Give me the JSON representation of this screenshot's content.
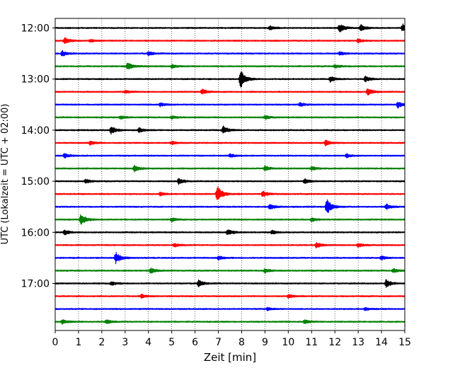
{
  "chart_data": {
    "type": "line",
    "title": "",
    "xlabel": "Zeit  [min]",
    "ylabel": "UTC (Lokalzeit = UTC + 02:00)",
    "xlim": [
      0,
      15
    ],
    "x_ticks": [
      "0",
      "1",
      "2",
      "3",
      "4",
      "5",
      "6",
      "7",
      "8",
      "9",
      "10",
      "11",
      "12",
      "13",
      "14",
      "15"
    ],
    "y_tick_labels": [
      "12:00",
      "13:00",
      "14:00",
      "15:00",
      "16:00",
      "17:00"
    ],
    "grid": "vertical dotted lines at each minute",
    "trace_colors": [
      "#000000",
      "#ff0000",
      "#0000ff",
      "#008000"
    ],
    "series": [
      {
        "start": "12:00",
        "events": [
          [
            12.2,
            0.45
          ],
          [
            13.1,
            0.35
          ],
          [
            14.9,
            0.4
          ],
          [
            9.2,
            0.2
          ]
        ]
      },
      {
        "start": "12:15",
        "events": [
          [
            0.4,
            0.35
          ],
          [
            13.0,
            0.2
          ],
          [
            1.5,
            0.15
          ]
        ]
      },
      {
        "start": "12:30",
        "events": [
          [
            0.3,
            0.3
          ],
          [
            4.0,
            0.2
          ],
          [
            12.2,
            0.2
          ]
        ]
      },
      {
        "start": "12:45",
        "events": [
          [
            3.1,
            0.4
          ],
          [
            5.0,
            0.2
          ],
          [
            12.0,
            0.2
          ]
        ]
      },
      {
        "start": "13:00",
        "events": [
          [
            7.95,
            1.0
          ],
          [
            11.8,
            0.3
          ],
          [
            13.3,
            0.3
          ]
        ]
      },
      {
        "start": "13:15",
        "events": [
          [
            6.3,
            0.3
          ],
          [
            13.4,
            0.35
          ],
          [
            3.0,
            0.15
          ]
        ]
      },
      {
        "start": "13:30",
        "events": [
          [
            14.7,
            0.35
          ],
          [
            4.5,
            0.2
          ],
          [
            10.5,
            0.2
          ]
        ]
      },
      {
        "start": "13:45",
        "events": [
          [
            2.8,
            0.2
          ],
          [
            9.0,
            0.2
          ],
          [
            5.0,
            0.15
          ]
        ]
      },
      {
        "start": "14:00",
        "events": [
          [
            2.4,
            0.4
          ],
          [
            7.2,
            0.45
          ],
          [
            3.6,
            0.25
          ]
        ]
      },
      {
        "start": "14:15",
        "events": [
          [
            11.6,
            0.3
          ],
          [
            1.5,
            0.2
          ],
          [
            5.0,
            0.15
          ]
        ]
      },
      {
        "start": "14:30",
        "events": [
          [
            0.4,
            0.25
          ],
          [
            12.5,
            0.2
          ],
          [
            7.5,
            0.2
          ]
        ]
      },
      {
        "start": "14:45",
        "events": [
          [
            3.4,
            0.35
          ],
          [
            9.0,
            0.25
          ],
          [
            11.0,
            0.2
          ]
        ]
      },
      {
        "start": "15:00",
        "events": [
          [
            5.3,
            0.3
          ],
          [
            10.7,
            0.25
          ],
          [
            1.3,
            0.2
          ]
        ]
      },
      {
        "start": "15:15",
        "events": [
          [
            6.95,
            0.9
          ],
          [
            8.9,
            0.3
          ],
          [
            4.5,
            0.2
          ]
        ]
      },
      {
        "start": "15:30",
        "events": [
          [
            11.65,
            0.85
          ],
          [
            14.2,
            0.3
          ],
          [
            9.2,
            0.3
          ]
        ]
      },
      {
        "start": "15:45",
        "events": [
          [
            1.1,
            0.65
          ],
          [
            5.0,
            0.2
          ],
          [
            11.0,
            0.2
          ]
        ]
      },
      {
        "start": "16:00",
        "events": [
          [
            7.4,
            0.3
          ],
          [
            0.4,
            0.25
          ],
          [
            9.3,
            0.2
          ]
        ]
      },
      {
        "start": "16:15",
        "events": [
          [
            11.2,
            0.3
          ],
          [
            5.1,
            0.2
          ],
          [
            13.0,
            0.2
          ]
        ]
      },
      {
        "start": "16:30",
        "events": [
          [
            2.6,
            0.6
          ],
          [
            14.0,
            0.2
          ],
          [
            7.0,
            0.2
          ]
        ]
      },
      {
        "start": "16:45",
        "events": [
          [
            4.1,
            0.3
          ],
          [
            14.5,
            0.25
          ],
          [
            9.0,
            0.2
          ]
        ]
      },
      {
        "start": "17:00",
        "events": [
          [
            6.15,
            0.35
          ],
          [
            14.2,
            0.45
          ],
          [
            2.4,
            0.2
          ]
        ]
      },
      {
        "start": "17:15",
        "events": [
          [
            3.7,
            0.2
          ],
          [
            10.0,
            0.2
          ]
        ]
      },
      {
        "start": "17:30",
        "events": [
          [
            9.1,
            0.15
          ],
          [
            13.3,
            0.15
          ]
        ]
      },
      {
        "start": "17:45",
        "events": [
          [
            0.3,
            0.25
          ],
          [
            2.2,
            0.2
          ],
          [
            10.7,
            0.2
          ]
        ]
      }
    ]
  }
}
